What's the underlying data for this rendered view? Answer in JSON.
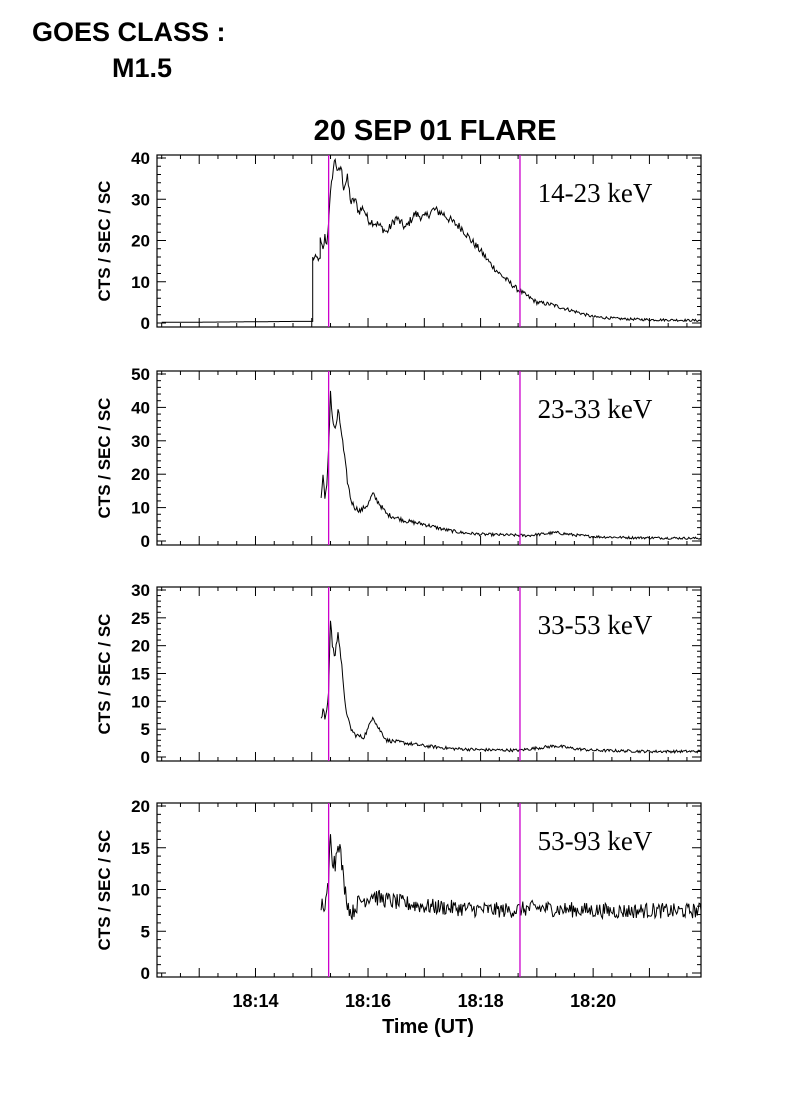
{
  "header": {
    "goes_line1": "GOES CLASS :",
    "goes_line2": "M1.5"
  },
  "colors": {
    "trace": "#000000",
    "marker": "#cc00cc",
    "frame": "#000000"
  },
  "chart_data": {
    "type": "line",
    "title": "20 SEP 01 FLARE",
    "xlabel": "Time (UT)",
    "xlim": [
      "18:12:15",
      "18:21:55"
    ],
    "xticks": [
      "18:14",
      "18:16",
      "18:18",
      "18:20"
    ],
    "marker_times": [
      "18:15:18",
      "18:18:42"
    ],
    "panels": [
      {
        "name": "14-23 keV",
        "ylabel": "CTS / SEC / SC",
        "ylim": [
          0,
          40
        ],
        "yticks": [
          "0",
          "10",
          "20",
          "30",
          "40"
        ],
        "points": [
          [
            "18:12:20",
            0.2
          ],
          [
            "18:13:00",
            0.2
          ],
          [
            "18:14:00",
            0.3
          ],
          [
            "18:14:50",
            0.4
          ],
          [
            "18:15:00",
            0.4
          ],
          [
            "18:15:01",
            15.7
          ],
          [
            "18:15:08",
            15.7
          ],
          [
            "18:15:09",
            20.0
          ],
          [
            "18:15:12",
            17.5
          ],
          [
            "18:15:14",
            21.0
          ],
          [
            "18:15:16",
            19.0
          ],
          [
            "18:15:18",
            25.0
          ],
          [
            "18:15:20",
            31.0
          ],
          [
            "18:15:22",
            36.0
          ],
          [
            "18:15:25",
            40.0
          ],
          [
            "18:15:28",
            36.0
          ],
          [
            "18:15:31",
            38.0
          ],
          [
            "18:15:34",
            33.0
          ],
          [
            "18:15:38",
            35.0
          ],
          [
            "18:15:42",
            29.0
          ],
          [
            "18:15:46",
            30.0
          ],
          [
            "18:15:50",
            27.0
          ],
          [
            "18:15:55",
            28.0
          ],
          [
            "18:16:00",
            25.0
          ],
          [
            "18:16:10",
            24.0
          ],
          [
            "18:16:20",
            22.0
          ],
          [
            "18:16:30",
            25.5
          ],
          [
            "18:16:40",
            23.0
          ],
          [
            "18:16:50",
            26.5
          ],
          [
            "18:17:00",
            25.5
          ],
          [
            "18:17:10",
            27.5
          ],
          [
            "18:17:20",
            26.5
          ],
          [
            "18:17:30",
            24.5
          ],
          [
            "18:17:40",
            23.0
          ],
          [
            "18:17:50",
            20.0
          ],
          [
            "18:18:00",
            17.5
          ],
          [
            "18:18:10",
            14.5
          ],
          [
            "18:18:20",
            12.0
          ],
          [
            "18:18:30",
            10.0
          ],
          [
            "18:18:40",
            8.0
          ],
          [
            "18:18:50",
            6.5
          ],
          [
            "18:19:00",
            5.0
          ],
          [
            "18:19:15",
            4.5
          ],
          [
            "18:19:30",
            3.5
          ],
          [
            "18:19:45",
            2.5
          ],
          [
            "18:20:00",
            1.5
          ],
          [
            "18:20:30",
            1.0
          ],
          [
            "18:21:00",
            0.8
          ],
          [
            "18:21:30",
            0.7
          ],
          [
            "18:21:55",
            0.6
          ]
        ]
      },
      {
        "name": "23-33 keV",
        "ylabel": "CTS / SEC / SC",
        "ylim": [
          0,
          50
        ],
        "yticks": [
          "0",
          "10",
          "20",
          "30",
          "40",
          "50"
        ],
        "points": [
          [
            "18:15:10",
            13.0
          ],
          [
            "18:15:12",
            19.5
          ],
          [
            "18:15:14",
            13.5
          ],
          [
            "18:15:16",
            16.0
          ],
          [
            "18:15:18",
            27.0
          ],
          [
            "18:15:20",
            45.0
          ],
          [
            "18:15:22",
            37.0
          ],
          [
            "18:15:25",
            33.0
          ],
          [
            "18:15:28",
            38.5
          ],
          [
            "18:15:31",
            34.0
          ],
          [
            "18:15:34",
            27.0
          ],
          [
            "18:15:38",
            18.0
          ],
          [
            "18:15:42",
            12.0
          ],
          [
            "18:15:46",
            10.0
          ],
          [
            "18:15:52",
            9.0
          ],
          [
            "18:16:00",
            11.0
          ],
          [
            "18:16:05",
            14.0
          ],
          [
            "18:16:10",
            12.0
          ],
          [
            "18:16:20",
            8.0
          ],
          [
            "18:16:40",
            6.0
          ],
          [
            "18:17:00",
            5.0
          ],
          [
            "18:17:20",
            3.5
          ],
          [
            "18:17:40",
            2.5
          ],
          [
            "18:18:00",
            2.0
          ],
          [
            "18:18:30",
            1.8
          ],
          [
            "18:18:50",
            1.6
          ],
          [
            "18:19:10",
            2.2
          ],
          [
            "18:19:20",
            2.5
          ],
          [
            "18:19:40",
            1.8
          ],
          [
            "18:20:00",
            1.3
          ],
          [
            "18:20:40",
            1.0
          ],
          [
            "18:21:20",
            0.9
          ],
          [
            "18:21:55",
            0.8
          ]
        ]
      },
      {
        "name": "33-53 keV",
        "ylabel": "CTS / SEC / SC",
        "ylim": [
          0,
          30
        ],
        "yticks": [
          "0",
          "5",
          "10",
          "15",
          "20",
          "25",
          "30"
        ],
        "points": [
          [
            "18:15:10",
            7.0
          ],
          [
            "18:15:12",
            8.5
          ],
          [
            "18:15:14",
            7.0
          ],
          [
            "18:15:16",
            8.0
          ],
          [
            "18:15:18",
            12.0
          ],
          [
            "18:15:20",
            25.0
          ],
          [
            "18:15:22",
            20.0
          ],
          [
            "18:15:25",
            18.0
          ],
          [
            "18:15:28",
            23.0
          ],
          [
            "18:15:31",
            18.0
          ],
          [
            "18:15:34",
            12.0
          ],
          [
            "18:15:38",
            7.0
          ],
          [
            "18:15:42",
            5.0
          ],
          [
            "18:15:46",
            4.0
          ],
          [
            "18:15:55",
            3.5
          ],
          [
            "18:16:00",
            5.0
          ],
          [
            "18:16:05",
            7.5
          ],
          [
            "18:16:10",
            5.5
          ],
          [
            "18:16:20",
            3.0
          ],
          [
            "18:16:40",
            2.5
          ],
          [
            "18:17:00",
            2.0
          ],
          [
            "18:17:30",
            1.5
          ],
          [
            "18:18:00",
            1.3
          ],
          [
            "18:18:40",
            1.2
          ],
          [
            "18:19:10",
            1.8
          ],
          [
            "18:19:20",
            2.0
          ],
          [
            "18:19:40",
            1.5
          ],
          [
            "18:20:00",
            1.2
          ],
          [
            "18:21:00",
            1.0
          ],
          [
            "18:21:55",
            1.0
          ]
        ]
      },
      {
        "name": "53-93 keV",
        "ylabel": "CTS / SEC / SC",
        "ylim": [
          0,
          20
        ],
        "yticks": [
          "0",
          "5",
          "10",
          "15",
          "20"
        ],
        "points": [
          [
            "18:15:10",
            8.0
          ],
          [
            "18:15:12",
            8.5
          ],
          [
            "18:15:14",
            7.5
          ],
          [
            "18:15:16",
            9.0
          ],
          [
            "18:15:18",
            11.0
          ],
          [
            "18:15:20",
            17.5
          ],
          [
            "18:15:22",
            14.0
          ],
          [
            "18:15:25",
            13.0
          ],
          [
            "18:15:28",
            16.5
          ],
          [
            "18:15:31",
            14.0
          ],
          [
            "18:15:34",
            11.0
          ],
          [
            "18:15:38",
            8.5
          ],
          [
            "18:15:42",
            7.0
          ],
          [
            "18:15:50",
            8.5
          ],
          [
            "18:16:00",
            9.0
          ],
          [
            "18:16:05",
            9.5
          ],
          [
            "18:16:10",
            9.0
          ],
          [
            "18:16:30",
            8.5
          ],
          [
            "18:17:00",
            8.0
          ],
          [
            "18:17:30",
            7.8
          ],
          [
            "18:18:00",
            7.6
          ],
          [
            "18:18:30",
            7.5
          ],
          [
            "18:19:00",
            7.8
          ],
          [
            "18:19:30",
            7.6
          ],
          [
            "18:20:00",
            7.5
          ],
          [
            "18:20:30",
            7.4
          ],
          [
            "18:21:00",
            7.5
          ],
          [
            "18:21:30",
            7.4
          ],
          [
            "18:21:55",
            7.5
          ]
        ]
      }
    ]
  }
}
